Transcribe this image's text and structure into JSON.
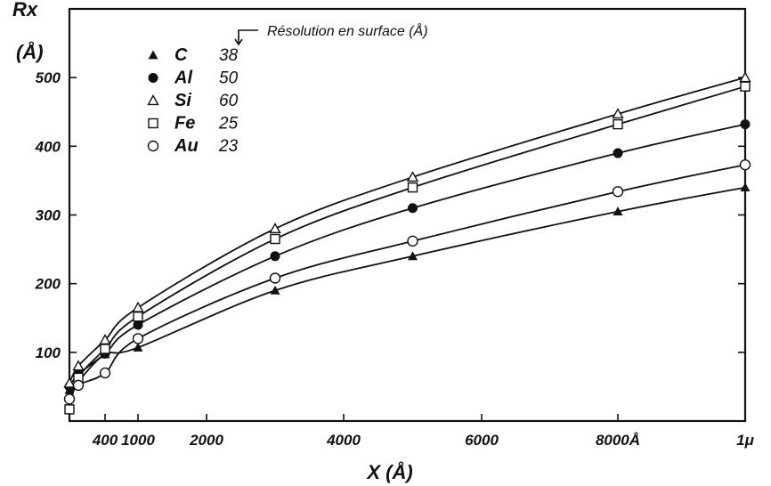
{
  "chart_data": {
    "type": "line",
    "title": "",
    "xlabel": "X (Å)",
    "ylabel_line1": "Rx",
    "ylabel_line2": "(Å)",
    "xlim": [
      0,
      10000
    ],
    "ylim": [
      0,
      600
    ],
    "x_ticks": [
      {
        "value": 400,
        "label": "400"
      },
      {
        "value": 1000,
        "label": "1000"
      },
      {
        "value": 2000,
        "label": "2000"
      },
      {
        "value": 4000,
        "label": "4000"
      },
      {
        "value": 6000,
        "label": "6000"
      },
      {
        "value": 8000,
        "label": "8000Å"
      },
      {
        "value": 10000,
        "label": "1μ"
      }
    ],
    "y_ticks": [
      {
        "value": 100,
        "label": "100"
      },
      {
        "value": 200,
        "label": "200"
      },
      {
        "value": 300,
        "label": "300"
      },
      {
        "value": 400,
        "label": "400"
      },
      {
        "value": 500,
        "label": "500"
      }
    ],
    "legend_header": "Résolution en surface (Å)",
    "legend_placement": "top-left",
    "series": [
      {
        "name": "C",
        "resolution": "38",
        "marker": "filled-triangle",
        "x": [
          0,
          100,
          400,
          1000,
          3000,
          5000,
          8000,
          10000
        ],
        "y": [
          45,
          58,
          97,
          107,
          190,
          240,
          305,
          340
        ]
      },
      {
        "name": "Al",
        "resolution": "50",
        "marker": "filled-circle",
        "x": [
          0,
          100,
          400,
          1000,
          3000,
          5000,
          8000,
          10000
        ],
        "y": [
          50,
          68,
          98,
          140,
          240,
          310,
          390,
          432
        ]
      },
      {
        "name": "Si",
        "resolution": "60",
        "marker": "open-triangle",
        "x": [
          0,
          100,
          400,
          1000,
          3000,
          5000,
          8000,
          10000
        ],
        "y": [
          55,
          80,
          118,
          165,
          280,
          355,
          447,
          500
        ]
      },
      {
        "name": "Fe",
        "resolution": "25",
        "marker": "open-square",
        "x": [
          0,
          100,
          400,
          1000,
          3000,
          5000,
          8000,
          10000
        ],
        "y": [
          17,
          63,
          105,
          152,
          265,
          340,
          432,
          487
        ]
      },
      {
        "name": "Au",
        "resolution": "23",
        "marker": "open-circle",
        "x": [
          0,
          100,
          400,
          1000,
          3000,
          5000,
          8000,
          10000
        ],
        "y": [
          32,
          52,
          70,
          120,
          208,
          262,
          334,
          373
        ]
      }
    ]
  }
}
